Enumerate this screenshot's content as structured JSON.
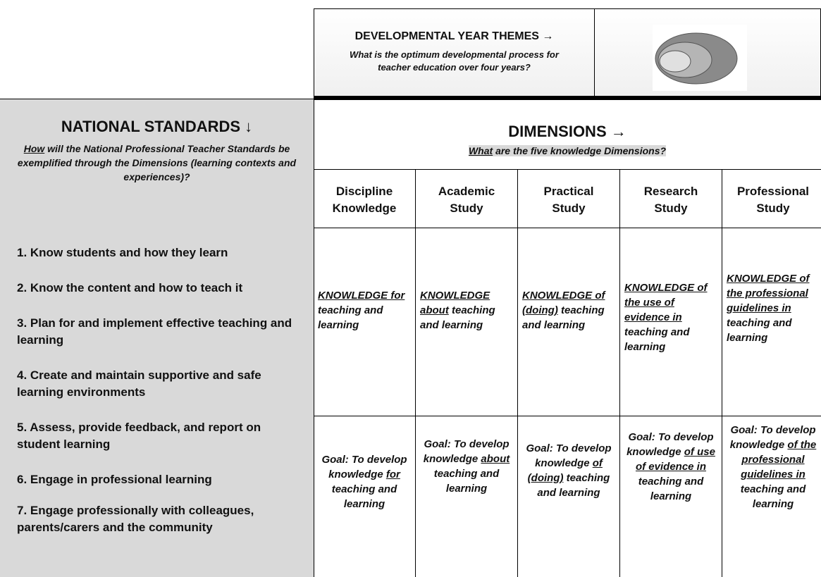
{
  "header": {
    "themes_title": "DEVELOPMENTAL YEAR THEMES →",
    "themes_question": "What is the optimum developmental process for teacher education over four years?"
  },
  "standards": {
    "title": "NATIONAL STANDARDS ↓",
    "question": [
      {
        "text": "How",
        "underline": true
      },
      {
        "text": " will the National Professional Teacher Standards be exemplified through the Dimensions (learning contexts and experiences)?"
      }
    ],
    "items": [
      "1. Know students and how they learn",
      "2. Know the content and how to teach it",
      "3. Plan for and implement effective teaching and learning",
      "4. Create and maintain supportive and safe learning environments",
      "5. Assess, provide feedback, and report on student learning",
      "6. Engage in professional learning",
      "7. Engage professionally with colleagues, parents/carers and the community"
    ]
  },
  "dimensions": {
    "title": "DIMENSIONS →",
    "question": [
      {
        "text": "What",
        "underline": true
      },
      {
        "text": " are the five knowledge Dimensions?"
      }
    ],
    "columns": [
      "Discipline Knowledge",
      "Academic Study",
      "Practical Study",
      "Research Study",
      "Professional Study"
    ],
    "knowledge": [
      [
        {
          "text": "KNOWLEDGE for",
          "underline": true
        },
        {
          "text": " teaching and learning"
        }
      ],
      [
        {
          "text": "KNOWLEDGE about",
          "underline": true
        },
        {
          "text": " teaching and learning"
        }
      ],
      [
        {
          "text": "KNOWLEDGE of (doing)",
          "underline": true
        },
        {
          "text": " teaching and learning"
        }
      ],
      [
        {
          "text": "KNOWLEDGE of the use of evidence in",
          "underline": true
        },
        {
          "text": " teaching and learning"
        }
      ],
      [
        {
          "text": "KNOWLEDGE of the professional guidelines in",
          "underline": true
        },
        {
          "text": " teaching and learning"
        }
      ]
    ],
    "goals": [
      [
        {
          "text": "Goal: To develop knowledge "
        },
        {
          "text": "for",
          "underline": true
        },
        {
          "text": " teaching and learning"
        }
      ],
      [
        {
          "text": "Goal: To develop knowledge "
        },
        {
          "text": "about",
          "underline": true
        },
        {
          "text": " teaching and learning"
        }
      ],
      [
        {
          "text": "Goal: To develop knowledge "
        },
        {
          "text": "of (doing)",
          "underline": true
        },
        {
          "text": " teaching and learning"
        }
      ],
      [
        {
          "text": "Goal: To develop knowledge "
        },
        {
          "text": "of use of evidence in",
          "underline": true
        },
        {
          "text": " teaching and learning"
        }
      ],
      [
        {
          "text": "Goal: To develop knowledge "
        },
        {
          "text": "of the professional guidelines in",
          "underline": true
        },
        {
          "text": " teaching and learning"
        }
      ]
    ]
  }
}
